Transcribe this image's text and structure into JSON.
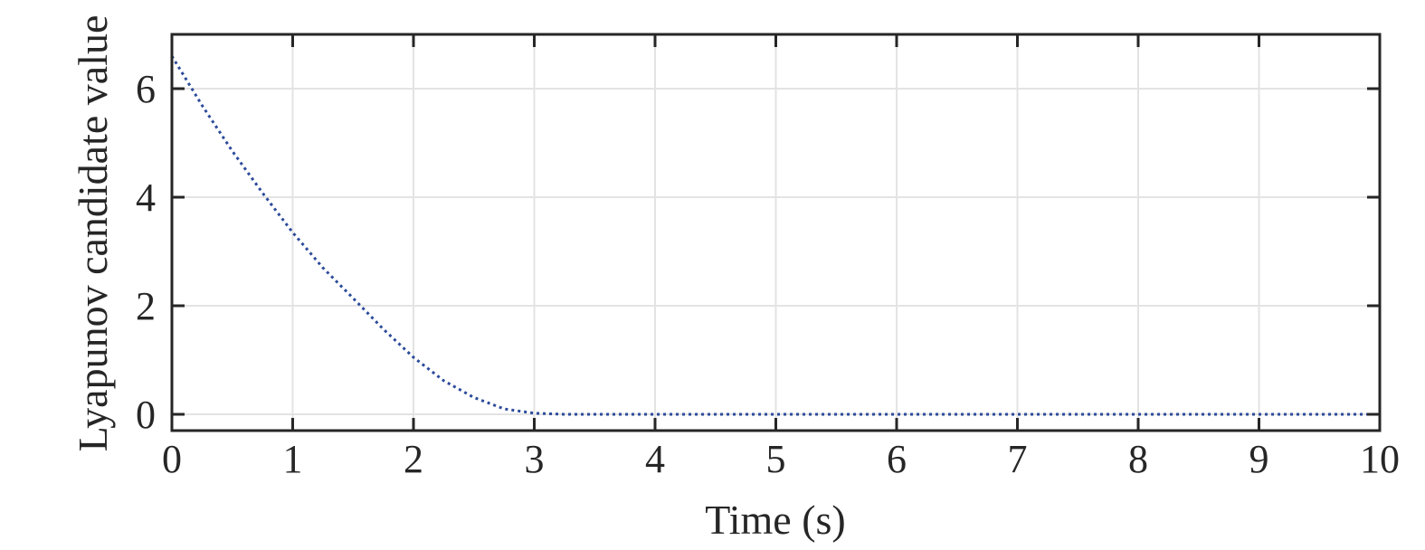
{
  "chart_data": {
    "type": "line",
    "title": "",
    "xlabel": "Time (s)",
    "ylabel": "Lyapunov candidate value",
    "xlim": [
      0,
      10
    ],
    "ylim": [
      -0.3,
      7
    ],
    "xticks": [
      0,
      1,
      2,
      3,
      4,
      5,
      6,
      7,
      8,
      9,
      10
    ],
    "yticks": [
      0,
      2,
      4,
      6
    ],
    "xtick_labels": [
      "0",
      "1",
      "2",
      "3",
      "4",
      "5",
      "6",
      "7",
      "8",
      "9",
      "10"
    ],
    "ytick_labels": [
      "0",
      "2",
      "4",
      "6"
    ],
    "grid": true,
    "box": true,
    "series": [
      {
        "line_style": "dotted",
        "color": "#2b4a9a",
        "x": [
          0,
          0.25,
          0.5,
          0.75,
          1.0,
          1.25,
          1.5,
          1.75,
          2.0,
          2.25,
          2.5,
          2.75,
          3.0,
          3.25,
          3.5,
          4,
          5,
          6,
          7,
          8,
          9,
          10
        ],
        "y": [
          6.6,
          5.69,
          4.85,
          4.08,
          3.35,
          2.7,
          2.14,
          1.57,
          1.05,
          0.62,
          0.31,
          0.1,
          0.02,
          0.0,
          0.0,
          0.0,
          0.0,
          0.0,
          0.0,
          0.0,
          0.0,
          0.0
        ]
      }
    ]
  }
}
